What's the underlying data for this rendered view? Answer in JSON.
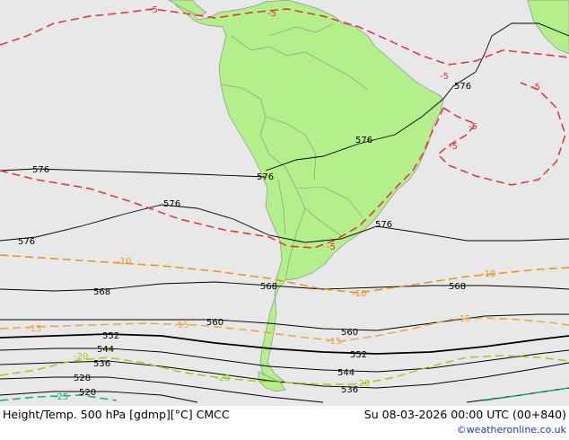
{
  "title": "Height/Temp. 500 hPa [gdmp][°C] CMCC",
  "valid_time": "Su 08-03-2026 00:00 UTC (00+840)",
  "credit": "©weatheronline.co.uk",
  "colors": {
    "ocean": "#e8e8e8",
    "land": "#b3f08c",
    "height_contour": "#000000",
    "temp_minus5": "#e53030",
    "temp_minus10": "#f08c1e",
    "temp_minus15": "#f0a040",
    "temp_minus20": "#90d020",
    "temp_minus25": "#10b080"
  },
  "height_labels": [
    "576",
    "576",
    "576",
    "576",
    "576",
    "576",
    "576",
    "568",
    "568",
    "568",
    "560",
    "560",
    "552",
    "552",
    "544",
    "544",
    "536",
    "536",
    "528",
    "520"
  ],
  "temp_labels": [
    "-5",
    "-5",
    "-5",
    "-5",
    "-5",
    "-5",
    "-5",
    "-10",
    "-10",
    "-10",
    "-15",
    "-15",
    "-15",
    "-15",
    "-20",
    "-20",
    "-20",
    "-25"
  ]
}
